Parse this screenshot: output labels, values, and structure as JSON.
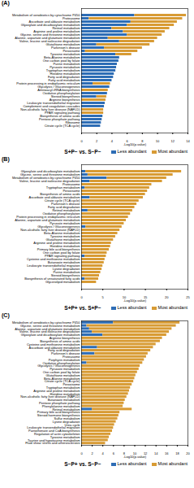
{
  "chart_data": [
    {
      "type": "bar",
      "orientation": "horizontal",
      "stacked": true,
      "title": "(A)",
      "subtitle": "S+P− vs. S−P−",
      "x_label": "-Log10(p-value)",
      "categories": [
        "Metabolism of xenobiotics by cytochrome P450",
        "Proteasome",
        "Ascorbate and aldarate metabolism",
        "Glyoxylate and dicarboxylate metabolism",
        "Retinol metabolism",
        "Arginine and proline metabolism",
        "Glycine, serine and threonine metabolism",
        "Alanine, aspartate and glutamate metabolism",
        "Valine, leucine and isoleucine degradation",
        "Glutathione metabolism",
        "Parkinson's disease",
        "Peroxisome",
        "Tyrosine metabolism",
        "Beta-Alanine metabolism",
        "One carbon pool by folate",
        "Purine metabolism",
        "Pyruvate metabolism",
        "Tryptophan metabolism",
        "Histidine metabolism",
        "Fatty acid degradation",
        "Fatty acid metabolism",
        "Protein processing in endoplasmic reticulum",
        "Glycolysis / Gluconeogenesis",
        "Aminoacyl-tRNA biosynthesis",
        "Oxidative phosphorylation",
        "Steroid biosynthesis",
        "Arginine biosynthesis",
        "Leukocyte transendothelial migration",
        "Complement and coagulation cascades",
        "Non-alcoholic fatty liver disease (NAFLD)",
        "PPAR signaling pathway",
        "Biosynthesis of amino acids",
        "Pentose phosphate pathway",
        "Ribosome",
        "Citrate cycle (TCA cycle)"
      ],
      "series": [
        {
          "name": "Less abundant",
          "color": "#2e6db5",
          "values": [
            7.0,
            1.0,
            6.5,
            6.0,
            4.0,
            5.5,
            6.0,
            3.5,
            5.0,
            2.0,
            3.0,
            0.5,
            4.5,
            5.0,
            4.9,
            4.7,
            4.6,
            4.5,
            4.3,
            4.2,
            4.0,
            1.5,
            3.7,
            0,
            3.4,
            2.0,
            0,
            3.1,
            3.0,
            0,
            0,
            2.8,
            2.7,
            2.6,
            2.5
          ]
        },
        {
          "name": "Most abundant",
          "color": "#d89b34",
          "values": [
            6.8,
            12.3,
            6.1,
            6.2,
            7.6,
            5.5,
            4.6,
            6.5,
            4.6,
            7.0,
            5.0,
            6.9,
            2.1,
            0,
            0,
            0,
            0,
            0,
            0,
            0,
            0,
            2.3,
            0,
            3.5,
            0,
            1.3,
            3.2,
            0,
            0,
            2.9,
            2.9,
            0,
            0,
            0,
            0
          ]
        }
      ],
      "xlim": [
        0,
        14
      ],
      "xticks": [
        0,
        2,
        4,
        6,
        8,
        10,
        12,
        14
      ]
    },
    {
      "type": "bar",
      "orientation": "horizontal",
      "stacked": true,
      "title": "(B)",
      "subtitle": "S+P+ vs. S+P−",
      "x_label": "-Log10(p-value)",
      "categories": [
        "Glyoxylate and dicarboxylate metabolism",
        "Glycine, serine and threonine metabolism",
        "Metabolism of xenobiotics by cytochrome P450",
        "Valine, leucine and isoleucine degradation",
        "Proteasome",
        "Tryptophan metabolism",
        "Peroxisome",
        "Biosynthesis of amino acids",
        "Ascorbate and aldarate metabolism",
        "Citrate cycle (TCA cycle)",
        "Parkinson's disease",
        "Fatty acid degradation",
        "Retinol metabolism",
        "Oxidative phosphorylation",
        "Protein processing in endoplasmic reticulum",
        "Alanine, aspartate and glutamate metabolism",
        "Pyruvate metabolism",
        "Glycolysis / Gluconeogenesis",
        "Non-alcoholic fatty liver disease (NAFLD)",
        "Beta-Alanine metabolism",
        "Tyrosine metabolism",
        "Glutathione metabolism",
        "Arginine and proline metabolism",
        "Histidine metabolism",
        "Primary bile acid biosynthesis",
        "One carbon pool by folate",
        "PPAR signaling pathway",
        "Cysteine and methionine metabolism",
        "Butanoate metabolism",
        "Leukocyte transendothelial migration",
        "Lysine degradation",
        "Purine metabolism",
        "Steroid biosynthesis",
        "Biosynthesis of unsaturated fatty acids",
        "Glycerolipid metabolism"
      ],
      "series": [
        {
          "name": "Less abundant",
          "color": "#2e6db5",
          "values": [
            1.0,
            1.5,
            6.0,
            2.0,
            0,
            0.8,
            0,
            0,
            2.0,
            0,
            0,
            0,
            1.5,
            0,
            0,
            0,
            0,
            1.0,
            0,
            0,
            0,
            0,
            0,
            0,
            0,
            0,
            0.8,
            0,
            0,
            0,
            0,
            0,
            0,
            0.8,
            0
          ]
        },
        {
          "name": "Most abundant",
          "color": "#d89b34",
          "values": [
            22.5,
            20.0,
            14.0,
            17.0,
            16.5,
            15.2,
            15.5,
            15.0,
            12.5,
            13.5,
            13.0,
            12.5,
            10.5,
            11.5,
            11.0,
            10.5,
            10.0,
            8.5,
            9.0,
            8.5,
            8.0,
            7.5,
            7.0,
            6.8,
            6.5,
            6.0,
            5.0,
            5.5,
            5.3,
            5.0,
            4.8,
            4.5,
            4.2,
            3.2,
            3.5
          ]
        }
      ],
      "xlim": [
        0,
        25
      ],
      "xticks": [
        0,
        5,
        10,
        15,
        20,
        25
      ]
    },
    {
      "type": "bar",
      "orientation": "horizontal",
      "stacked": true,
      "title": "(C)",
      "subtitle": "S−P+ vs. S−P−",
      "x_label": "-Log10(p-value)",
      "categories": [
        "Metabolism of xenobiotics by cytochrome P450",
        "Glycine, serine and threonine metabolism",
        "Alanine, aspartate and glutamate metabolism",
        "Valine, leucine and isoleucine degradation",
        "Glyoxylate and dicarboxylate metabolism",
        "Arginine biosynthesis",
        "Biosynthesis of amino acids",
        "Cysteine and methionine metabolism",
        "Ascorbate and aldarate metabolism",
        "Fatty acid degradation",
        "Parkinson's disease",
        "Proteasome",
        "Porphyrin metabolism",
        "Oxidative phosphorylation",
        "Glycolysis / Gluconeogenesis",
        "Pyruvate metabolism",
        "One carbon pool by folate",
        "Glutathione metabolism",
        "Beta-Alanine metabolism",
        "Citrate cycle (TCA cycle)",
        "Peroxisome",
        "Tryptophan metabolism",
        "Arginine and proline metabolism",
        "Histidine metabolism",
        "Non-alcoholic fatty liver disease (NAFLD)",
        "Butanoate metabolism",
        "Pentose phosphate pathway",
        "Phenylalanine metabolism",
        "Retinol metabolism",
        "Primary bile acid biosynthesis",
        "Steroid hormone biosynthesis",
        "Sulfur metabolism",
        "Lysine degradation",
        "Urea cycle",
        "Leukocyte transendothelial migration",
        "Pantothenate and CoA biosynthesis",
        "Regulation of actin cytoskeleton",
        "Tyrosine metabolism",
        "Taurine and hypotaurine metabolism",
        "Fluid shear stress and atherosclerosis"
      ],
      "series": [
        {
          "name": "Less abundant",
          "color": "#2e6db5",
          "values": [
            6.0,
            1.0,
            1.5,
            2.0,
            4.0,
            0,
            0,
            0,
            3.0,
            0,
            2.5,
            0,
            0,
            1.0,
            0,
            0,
            0,
            0,
            0,
            0,
            0,
            0,
            0,
            0,
            0,
            0,
            0,
            0,
            2.0,
            0,
            0,
            0,
            0,
            0,
            0,
            0,
            0,
            0,
            0,
            0
          ]
        },
        {
          "name": "Most abundant",
          "color": "#d89b34",
          "values": [
            12.5,
            16.8,
            15.5,
            14.5,
            12.0,
            15.2,
            14.8,
            14.0,
            10.5,
            13.0,
            10.0,
            12.2,
            11.8,
            10.5,
            11.0,
            10.8,
            10.5,
            10.2,
            10.0,
            9.8,
            9.5,
            9.2,
            9.0,
            8.8,
            8.5,
            8.2,
            8.0,
            7.8,
            7.5,
            7.2,
            7.0,
            6.8,
            6.5,
            6.2,
            6.0,
            5.8,
            5.5,
            5.2,
            5.0,
            4.5
          ]
        }
      ],
      "xlim": [
        0,
        20
      ],
      "xticks": [
        0,
        2,
        4,
        6,
        8,
        10,
        12,
        14,
        16,
        18,
        20
      ]
    }
  ]
}
